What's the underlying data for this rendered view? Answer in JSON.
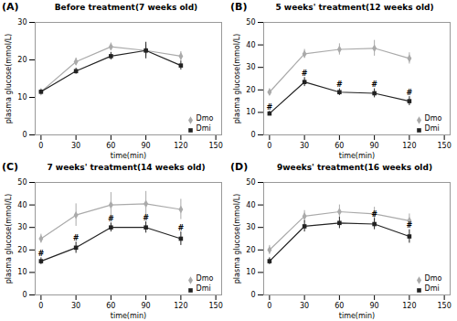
{
  "chart_data": [
    {
      "type": "line",
      "title": "Before treatment(7 weeks old)",
      "panel_label": "(A)",
      "x": [
        0,
        30,
        60,
        90,
        120
      ],
      "xlabel": "time(min)",
      "ylabel": "plasma glucose(mmol/L)",
      "xlim": [
        -5,
        155
      ],
      "xticks": [
        0,
        30,
        60,
        90,
        120,
        150
      ],
      "ylim": [
        0,
        30
      ],
      "yticks": [
        0,
        10,
        20,
        30
      ],
      "grid": false,
      "legend": "lower right",
      "series": [
        {
          "name": "Dmo",
          "color": "#aaaaaa",
          "marker": "diamond",
          "values": [
            11.5,
            19.5,
            23.5,
            22.5,
            21.0
          ],
          "errors": [
            0.5,
            1.0,
            1.0,
            1.5,
            1.2
          ]
        },
        {
          "name": "Dmi",
          "color": "#222222",
          "marker": "square",
          "values": [
            11.5,
            17.0,
            21.0,
            22.5,
            18.5
          ],
          "errors": [
            0.5,
            0.8,
            1.0,
            2.2,
            1.2
          ]
        }
      ],
      "hash_marks": {
        "text": "#",
        "series": "Dmi",
        "x": []
      }
    },
    {
      "type": "line",
      "title": "5 weeks' treatment(12 weeks old)",
      "panel_label": "(B)",
      "x": [
        0,
        30,
        60,
        90,
        120
      ],
      "xlabel": "time(min)",
      "ylabel": "plasma glucose(mmol/L)",
      "xlim": [
        -5,
        155
      ],
      "xticks": [
        0,
        30,
        60,
        90,
        120,
        150
      ],
      "ylim": [
        0,
        50
      ],
      "yticks": [
        0,
        10,
        20,
        30,
        40,
        50
      ],
      "grid": false,
      "legend": "lower right",
      "series": [
        {
          "name": "Dmo",
          "color": "#aaaaaa",
          "marker": "diamond",
          "values": [
            19.0,
            36.0,
            38.0,
            38.5,
            34.0
          ],
          "errors": [
            1.5,
            2.0,
            2.5,
            3.5,
            2.5
          ]
        },
        {
          "name": "Dmi",
          "color": "#222222",
          "marker": "square",
          "values": [
            9.5,
            23.5,
            19.0,
            18.5,
            15.0
          ],
          "errors": [
            1.0,
            2.0,
            1.5,
            2.0,
            2.0
          ]
        }
      ],
      "hash_marks": {
        "text": "#",
        "series": "Dmi",
        "x": [
          0,
          30,
          60,
          90,
          120
        ]
      }
    },
    {
      "type": "line",
      "title": "7 weeks' treatment(14 weeks old)",
      "panel_label": "(C)",
      "x": [
        0,
        30,
        60,
        90,
        120
      ],
      "xlabel": "time(min)",
      "ylabel": "plasma glucose(mmol/L)",
      "xlim": [
        -5,
        155
      ],
      "xticks": [
        0,
        30,
        60,
        90,
        120,
        150
      ],
      "ylim": [
        0,
        50
      ],
      "yticks": [
        0,
        10,
        20,
        30,
        40,
        50
      ],
      "grid": false,
      "legend": "lower right",
      "series": [
        {
          "name": "Dmo",
          "color": "#aaaaaa",
          "marker": "diamond",
          "values": [
            25.0,
            35.5,
            40.0,
            40.5,
            38.0
          ],
          "errors": [
            2.0,
            5.0,
            5.5,
            5.5,
            4.5
          ]
        },
        {
          "name": "Dmi",
          "color": "#222222",
          "marker": "square",
          "values": [
            15.0,
            21.0,
            30.0,
            30.0,
            25.0
          ],
          "errors": [
            1.5,
            2.5,
            2.0,
            2.5,
            3.0
          ]
        }
      ],
      "hash_marks": {
        "text": "#",
        "series": "Dmi",
        "x": [
          0,
          30,
          60,
          90,
          120
        ]
      }
    },
    {
      "type": "line",
      "title": "9weeks' treatment(16 weeks old)",
      "panel_label": "(D)",
      "x": [
        0,
        30,
        60,
        90,
        120
      ],
      "xlabel": "time(min)",
      "ylabel": "plasma glucose(mmol/L)",
      "xlim": [
        -5,
        155
      ],
      "xticks": [
        0,
        30,
        60,
        90,
        120,
        150
      ],
      "ylim": [
        0,
        50
      ],
      "yticks": [
        0,
        10,
        20,
        30,
        40,
        50
      ],
      "grid": false,
      "legend": "lower right",
      "series": [
        {
          "name": "Dmo",
          "color": "#aaaaaa",
          "marker": "diamond",
          "values": [
            20.0,
            35.0,
            37.0,
            36.0,
            33.0
          ],
          "errors": [
            2.0,
            2.5,
            3.0,
            3.0,
            3.0
          ]
        },
        {
          "name": "Dmi",
          "color": "#222222",
          "marker": "square",
          "values": [
            15.0,
            30.5,
            32.0,
            31.5,
            26.0
          ],
          "errors": [
            1.5,
            2.5,
            2.5,
            2.5,
            3.0
          ]
        }
      ],
      "hash_marks": {
        "text": "#",
        "series": "Dmi",
        "x": [
          90,
          120
        ]
      }
    }
  ]
}
